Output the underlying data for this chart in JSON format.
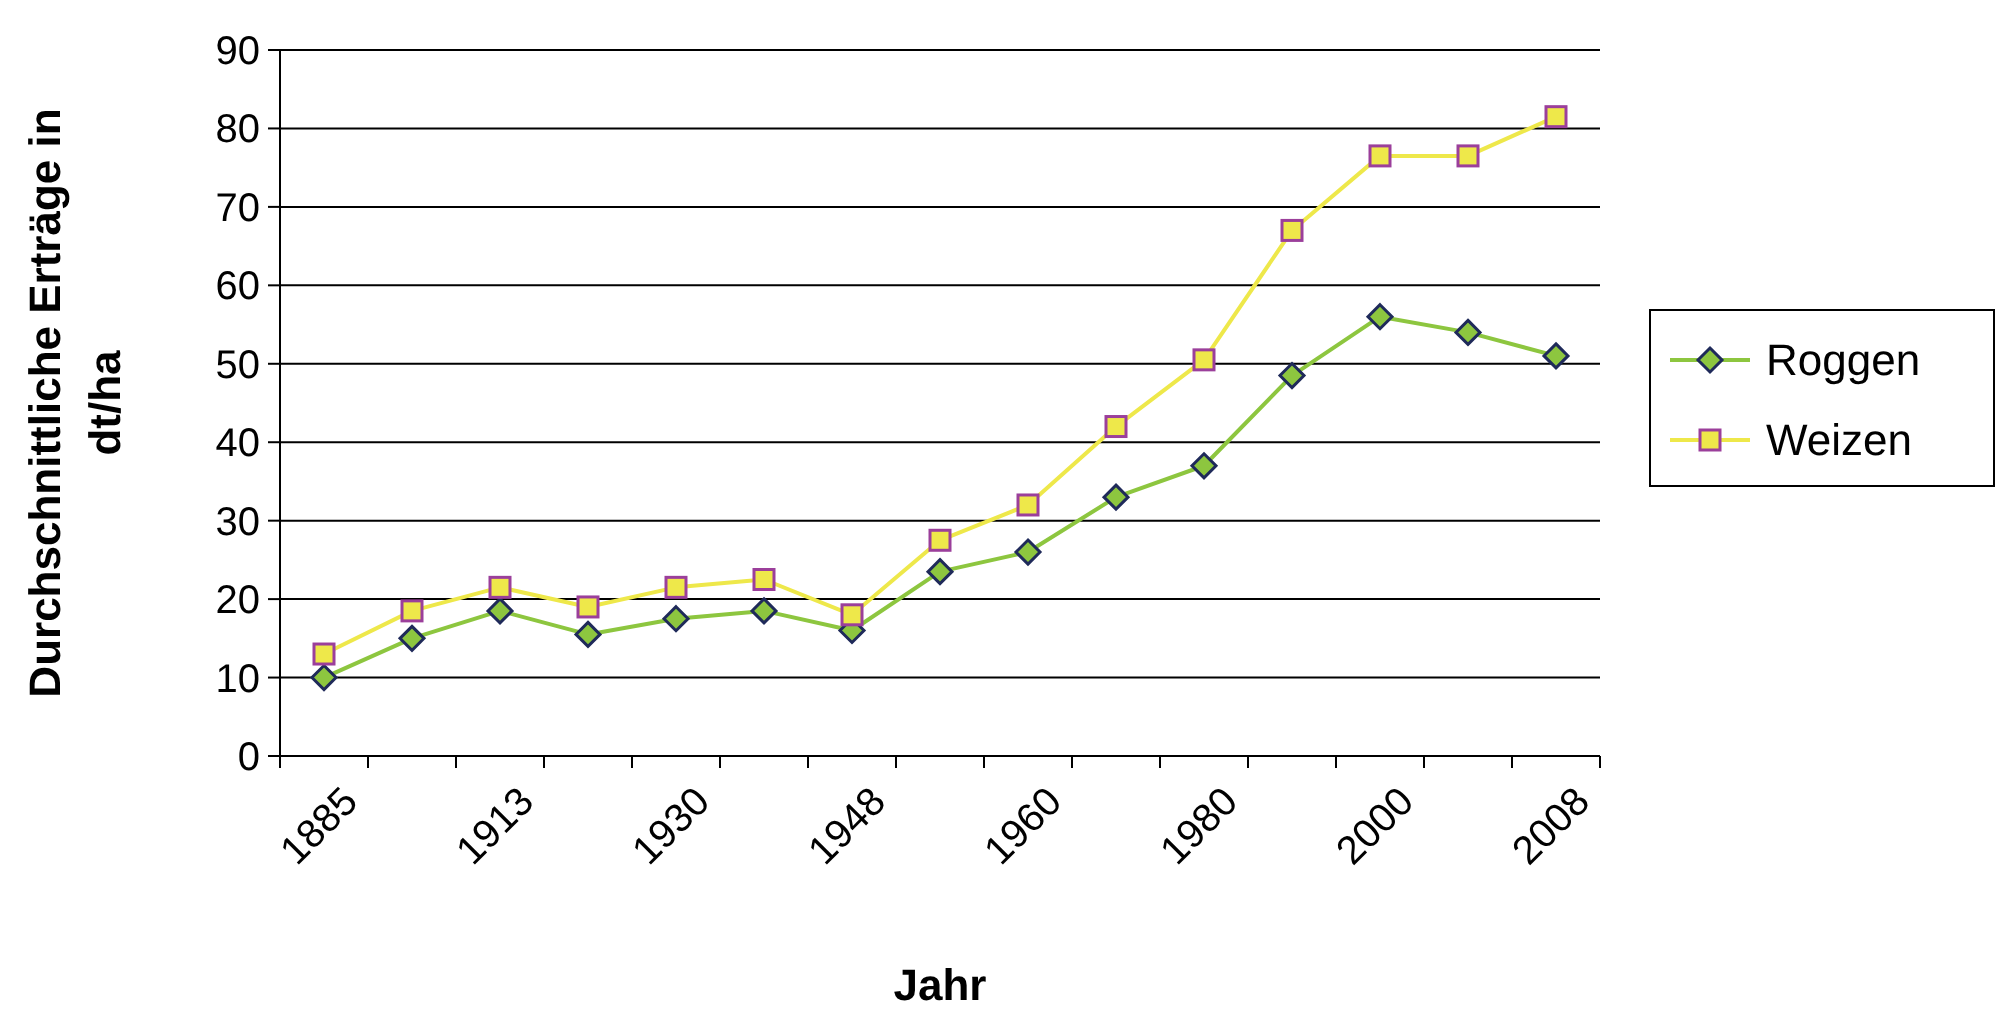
{
  "chart_data": {
    "type": "line",
    "xlabel": "Jahr",
    "ylabel": "Durchschnittliche Erträge in dt/ha",
    "categories": [
      "1885",
      null,
      "1913",
      null,
      "1930",
      null,
      "1948",
      null,
      "1960",
      null,
      "1980",
      null,
      "2000",
      null,
      "2008"
    ],
    "series": [
      {
        "name": "Roggen",
        "color": "#8dc63f",
        "marker": "diamond",
        "values": [
          10,
          15,
          18.5,
          15.5,
          17.5,
          18.5,
          16,
          23.5,
          26,
          33,
          37,
          48.5,
          56,
          54,
          51
        ]
      },
      {
        "name": "Weizen",
        "color": "#eee84a",
        "marker": "square",
        "values": [
          13,
          18.5,
          21.5,
          19,
          21.5,
          22.5,
          18,
          27.5,
          32,
          42,
          50.5,
          67,
          76.5,
          76.5,
          81.5
        ]
      }
    ],
    "ylim": [
      0,
      90
    ],
    "yticks": [
      0,
      10,
      20,
      30,
      40,
      50,
      60,
      70,
      80,
      90
    ],
    "grid": "y",
    "legend": "right"
  }
}
